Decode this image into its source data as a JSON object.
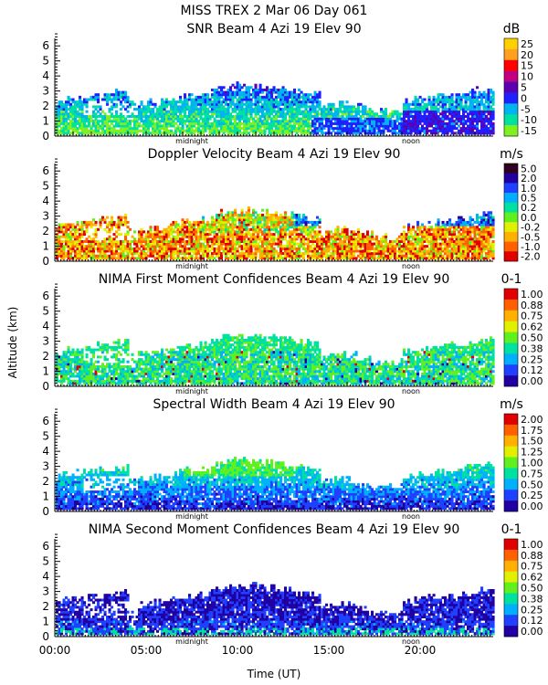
{
  "header": {
    "line1": "MISS TREX    2 Mar 06 Day 061"
  },
  "y_axis_label": "Altitude (km)",
  "x_axis_label": "Time (UT)",
  "x_ticks": [
    "00:00",
    "05:00",
    "10:00",
    "15:00",
    "20:00"
  ],
  "x_tick_hours": [
    0,
    5,
    10,
    15,
    20
  ],
  "x_markers": [
    {
      "label": "midnight",
      "hour": 7.5
    },
    {
      "label": "noon",
      "hour": 19.5
    }
  ],
  "chart_data": [
    {
      "type": "heatmap",
      "title": "SNR Beam 4 Azi  19 Elev 90",
      "units": "dB",
      "xlim": [
        0,
        24
      ],
      "ylim": [
        0,
        6.5
      ],
      "yticks": [
        "0",
        "1",
        "2",
        "3",
        "4",
        "5",
        "6"
      ],
      "colorbar_labels": [
        "25",
        "20",
        "15",
        "10",
        "5",
        "0",
        "-5",
        "-10",
        "-15"
      ],
      "colorbar_colors": [
        "#ffd000",
        "#ffa020",
        "#ff0000",
        "#c00080",
        "#5a00b0",
        "#2020ff",
        "#00b4f0",
        "#00e0a0",
        "#80f020"
      ],
      "field": "snr"
    },
    {
      "type": "heatmap",
      "title": "Doppler Velocity Beam 4 Azi  19 Elev 90",
      "units": "m/s",
      "xlim": [
        0,
        24
      ],
      "ylim": [
        0,
        6.5
      ],
      "yticks": [
        "0",
        "1",
        "2",
        "3",
        "4",
        "5",
        "6"
      ],
      "colorbar_labels": [
        "5.0",
        "2.0",
        "1.0",
        "0.5",
        "0.2",
        "0.0",
        "-0.2",
        "-0.5",
        "-1.0",
        "-2.0"
      ],
      "colorbar_colors": [
        "#300020",
        "#2000a0",
        "#2040ff",
        "#00b0ff",
        "#00e0a0",
        "#60f020",
        "#e0f000",
        "#ffb000",
        "#ff6000",
        "#e00000"
      ],
      "field": "doppler"
    },
    {
      "type": "heatmap",
      "title": "NIMA First Moment Confidences Beam 4 Azi  19 Elev 90",
      "units": "0-1",
      "xlim": [
        0,
        24
      ],
      "ylim": [
        0,
        6.5
      ],
      "yticks": [
        "0",
        "1",
        "2",
        "3",
        "4",
        "5",
        "6"
      ],
      "colorbar_labels": [
        "1.00",
        "0.88",
        "0.75",
        "0.62",
        "0.50",
        "0.38",
        "0.25",
        "0.12",
        "0.00"
      ],
      "colorbar_colors": [
        "#e00000",
        "#ff6000",
        "#ffb000",
        "#e0f000",
        "#60f020",
        "#00e0a0",
        "#00b0ff",
        "#2040ff",
        "#2000a0"
      ],
      "field": "conf1"
    },
    {
      "type": "heatmap",
      "title": "Spectral Width Beam 4 Azi  19 Elev 90",
      "units": "m/s",
      "xlim": [
        0,
        24
      ],
      "ylim": [
        0,
        6.5
      ],
      "yticks": [
        "0",
        "1",
        "2",
        "3",
        "4",
        "5",
        "6"
      ],
      "colorbar_labels": [
        "2.00",
        "1.75",
        "1.50",
        "1.25",
        "1.00",
        "0.75",
        "0.50",
        "0.25",
        "0.00"
      ],
      "colorbar_colors": [
        "#e00000",
        "#ff6000",
        "#ffb000",
        "#e0f000",
        "#60f020",
        "#00e0a0",
        "#00b0ff",
        "#2040ff",
        "#2000a0"
      ],
      "field": "width"
    },
    {
      "type": "heatmap",
      "title": "NIMA Second Moment Confidences Beam 4 Azi  19 Elev 90",
      "units": "0-1",
      "xlim": [
        0,
        24
      ],
      "ylim": [
        0,
        6.5
      ],
      "yticks": [
        "0",
        "1",
        "2",
        "3",
        "4",
        "5",
        "6"
      ],
      "colorbar_labels": [
        "1.00",
        "0.88",
        "0.75",
        "0.62",
        "0.50",
        "0.38",
        "0.25",
        "0.12",
        "0.00"
      ],
      "colorbar_colors": [
        "#e00000",
        "#ff6000",
        "#ffb000",
        "#e0f000",
        "#60f020",
        "#00e0a0",
        "#00b0ff",
        "#2040ff",
        "#2000a0"
      ],
      "field": "conf2"
    }
  ]
}
